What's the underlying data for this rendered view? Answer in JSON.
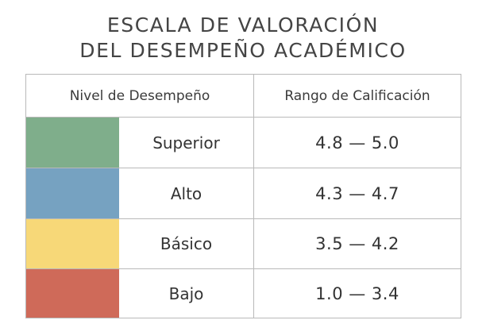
{
  "title": {
    "line1": "ESCALA DE VALORACIÓN",
    "line2": "DEL DESEMPEÑO ACADÉMICO"
  },
  "table": {
    "headers": {
      "level": "Nivel de Desempeño",
      "range": "Rango de Calificación"
    },
    "rows": [
      {
        "level": "Superior",
        "range": "4.8 — 5.0",
        "color": "#7fae8b"
      },
      {
        "level": "Alto",
        "range": "4.3 — 4.7",
        "color": "#76a2c1"
      },
      {
        "level": "Básico",
        "range": "3.5 — 4.2",
        "color": "#f7d878"
      },
      {
        "level": "Bajo",
        "range": "1.0 — 3.4",
        "color": "#cf6a59"
      }
    ]
  }
}
